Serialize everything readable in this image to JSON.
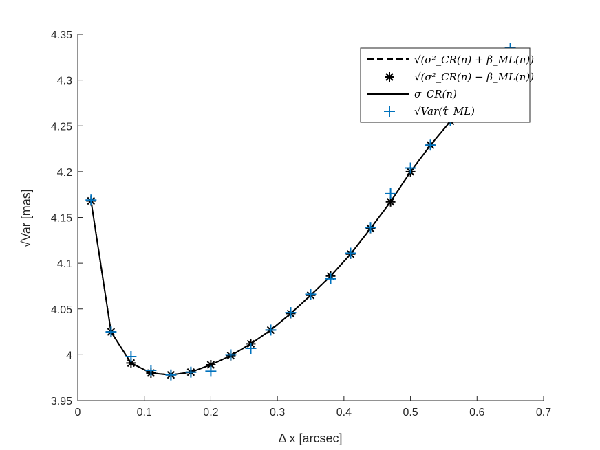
{
  "chart_data": {
    "type": "line",
    "xlabel": "Δ x [arcsec]",
    "ylabel": "√Var [mas]",
    "xlim": [
      0,
      0.7
    ],
    "ylim": [
      3.95,
      4.35
    ],
    "xticks": [
      "0",
      "0.1",
      "0.2",
      "0.3",
      "0.4",
      "0.5",
      "0.6",
      "0.7"
    ],
    "yticks": [
      "3.95",
      "4",
      "4.05",
      "4.1",
      "4.15",
      "4.2",
      "4.25",
      "4.3",
      "4.35"
    ],
    "legend_position": "top-right",
    "grid": false,
    "x": [
      0.02,
      0.05,
      0.08,
      0.11,
      0.14,
      0.17,
      0.2,
      0.23,
      0.26,
      0.29,
      0.32,
      0.35,
      0.38,
      0.41,
      0.44,
      0.47,
      0.5,
      0.53,
      0.56,
      0.59,
      0.62,
      0.65
    ],
    "series": [
      {
        "name": "√(σ²_CR(n) + β_ML(n))",
        "style": "dashed-line",
        "color": "#000000",
        "values": [
          4.168,
          4.025,
          3.991,
          3.98,
          3.978,
          3.981,
          3.989,
          3.999,
          4.012,
          4.027,
          4.045,
          4.065,
          4.086,
          4.11,
          4.138,
          4.167,
          4.2,
          4.229,
          4.255,
          4.281,
          4.305,
          4.33
        ]
      },
      {
        "name": "√(σ²_CR(n) − β_ML(n))",
        "style": "asterisk-markers",
        "color": "#000000",
        "values": [
          4.168,
          4.025,
          3.991,
          3.98,
          3.978,
          3.981,
          3.989,
          3.999,
          4.012,
          4.027,
          4.045,
          4.065,
          4.086,
          4.11,
          4.138,
          4.167,
          4.2,
          4.229,
          4.255,
          4.281,
          4.305,
          4.33
        ]
      },
      {
        "name": "σ_CR(n)",
        "style": "solid-line",
        "color": "#000000",
        "values": [
          4.168,
          4.025,
          3.991,
          3.98,
          3.978,
          3.981,
          3.989,
          3.999,
          4.012,
          4.027,
          4.045,
          4.065,
          4.086,
          4.11,
          4.138,
          4.167,
          4.2,
          4.229,
          4.255,
          4.281,
          4.305,
          4.33
        ]
      },
      {
        "name": "√Var(τ̂_ML)",
        "style": "plus-markers",
        "color": "#0072BD",
        "values": [
          4.169,
          4.025,
          3.998,
          3.983,
          3.978,
          3.981,
          3.982,
          4.0,
          4.007,
          4.027,
          4.046,
          4.066,
          4.083,
          4.111,
          4.139,
          4.176,
          4.204,
          4.229,
          4.256,
          4.282,
          4.306,
          4.335
        ]
      }
    ]
  }
}
